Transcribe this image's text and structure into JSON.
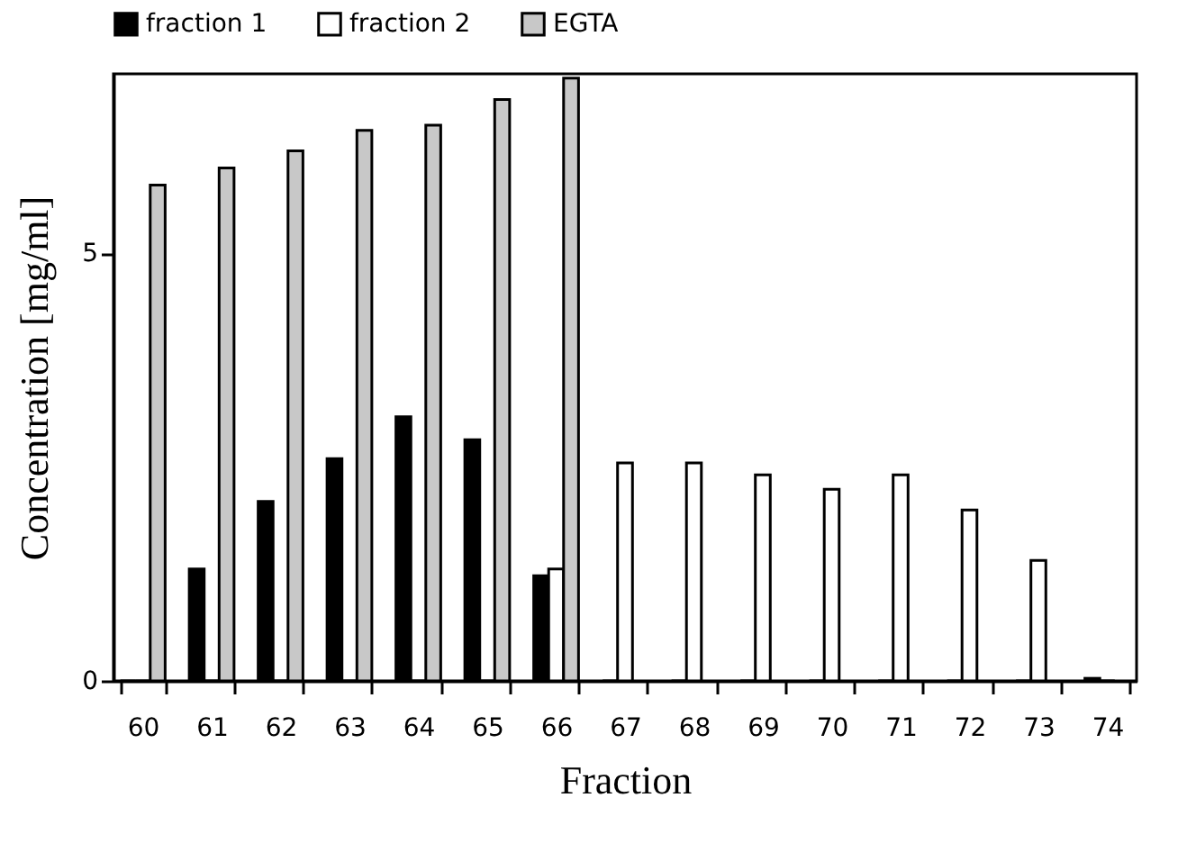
{
  "chart_data": {
    "type": "bar",
    "xlabel": "Fraction",
    "ylabel": "Concentration [mg/ml]",
    "categories": [
      "60",
      "61",
      "62",
      "63",
      "64",
      "65",
      "66",
      "67",
      "68",
      "69",
      "70",
      "71",
      "72",
      "73",
      "74"
    ],
    "series": [
      {
        "name": "fraction 1",
        "color": "#000000",
        "values": [
          0,
          1.31,
          2.1,
          2.6,
          3.09,
          2.82,
          1.23,
          0,
          0,
          0,
          0,
          0,
          0,
          0,
          0.03
        ]
      },
      {
        "name": "fraction 2",
        "color": "#ffffff",
        "values": [
          0,
          0,
          0,
          0,
          0,
          0,
          1.31,
          2.55,
          2.55,
          2.41,
          2.24,
          2.41,
          2.0,
          1.41,
          0
        ]
      },
      {
        "name": "EGTA",
        "color": "#c8c8c8",
        "values": [
          5.8,
          6.0,
          6.2,
          6.44,
          6.5,
          6.8,
          7.05,
          null,
          null,
          null,
          null,
          null,
          null,
          null,
          null
        ]
      }
    ],
    "ylim": [
      0,
      7.1
    ],
    "yticks": [
      0,
      5
    ],
    "grid": false,
    "legend": "top"
  }
}
